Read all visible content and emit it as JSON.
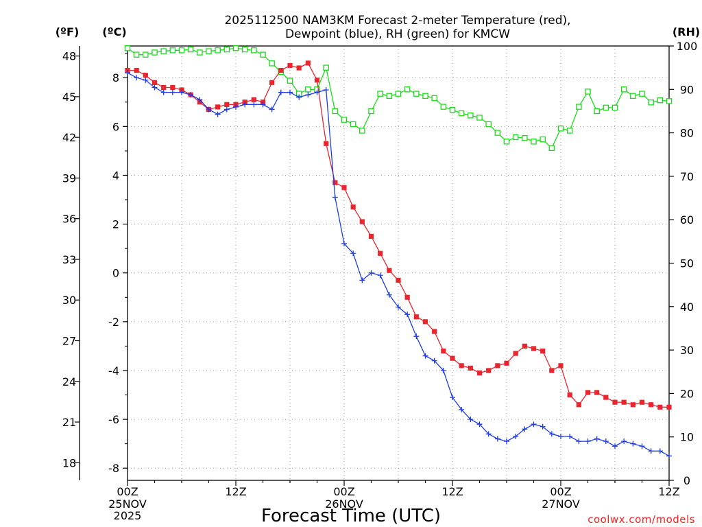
{
  "chart_data": {
    "type": "line",
    "title_line1": "2025112500 NAM3KM Forecast 2-meter Temperature (red),",
    "title_line2": "Dewpoint (blue), RH (green) for KMCW",
    "xlabel": "Forecast Time (UTC)",
    "credit": "coolwx.com/models",
    "left_unit_f": "(ºF)",
    "left_unit_c": "(ºC)",
    "right_unit": "(RH)",
    "x_hour_range": [
      0,
      60
    ],
    "y_celsius_range": [
      -8.5,
      9.3
    ],
    "y_rh_range": [
      0,
      100
    ],
    "x_ticks": [
      {
        "hour": 0,
        "label": "00Z",
        "sub1": "25NOV",
        "sub2": "2025"
      },
      {
        "hour": 12,
        "label": "12Z",
        "sub1": "",
        "sub2": ""
      },
      {
        "hour": 24,
        "label": "00Z",
        "sub1": "26NOV",
        "sub2": ""
      },
      {
        "hour": 36,
        "label": "12Z",
        "sub1": "",
        "sub2": ""
      },
      {
        "hour": 48,
        "label": "00Z",
        "sub1": "27NOV",
        "sub2": ""
      },
      {
        "hour": 60,
        "label": "12Z",
        "sub1": "",
        "sub2": ""
      }
    ],
    "y_ticks_c": [
      8,
      6,
      4,
      2,
      0,
      -2,
      -4,
      -6,
      -8
    ],
    "y_ticks_f": [
      48,
      45,
      42,
      39,
      36,
      33,
      30,
      27,
      24,
      21,
      18
    ],
    "y_ticks_rh": [
      100,
      90,
      80,
      70,
      60,
      50,
      40,
      30,
      20,
      10,
      0
    ],
    "colors": {
      "temperature": "#e8262e",
      "dewpoint": "#1e3be8",
      "rh": "#19dc19"
    },
    "series": [
      {
        "name": "Temperature (°C)",
        "key": "temp",
        "hours": [
          0,
          1,
          2,
          3,
          4,
          5,
          6,
          7,
          8,
          9,
          10,
          11,
          12,
          13,
          14,
          15,
          16,
          17,
          18,
          19,
          20,
          21,
          22,
          23,
          24,
          25,
          26,
          27,
          28,
          29,
          30,
          31,
          32,
          33,
          34,
          35,
          36,
          37,
          38,
          39,
          40,
          41,
          42,
          43,
          44,
          45,
          46,
          47,
          48,
          49,
          50,
          51,
          52,
          53,
          54,
          55,
          56,
          57,
          58,
          59,
          60
        ],
        "values": [
          8.3,
          8.3,
          8.1,
          7.8,
          7.6,
          7.6,
          7.5,
          7.3,
          7.0,
          6.7,
          6.8,
          6.9,
          6.9,
          7.0,
          7.1,
          7.0,
          7.8,
          8.3,
          8.5,
          8.4,
          8.6,
          7.9,
          5.3,
          3.7,
          3.5,
          2.7,
          2.1,
          1.5,
          0.8,
          0.1,
          -0.3,
          -1.0,
          -1.8,
          -2.0,
          -2.4,
          -3.2,
          -3.5,
          -3.8,
          -3.9,
          -4.1,
          -4.0,
          -3.8,
          -3.7,
          -3.3,
          -3.0,
          -3.1,
          -3.2,
          -4.0,
          -3.8,
          -5.0,
          -5.4,
          -4.9,
          -4.9,
          -5.1,
          -5.3,
          -5.3,
          -5.4,
          -5.3,
          -5.4,
          -5.5,
          -5.5
        ]
      },
      {
        "name": "Dewpoint (°C)",
        "key": "dew",
        "hours": [
          0,
          1,
          2,
          3,
          4,
          5,
          6,
          7,
          8,
          9,
          10,
          11,
          12,
          13,
          14,
          15,
          16,
          17,
          18,
          19,
          20,
          21,
          22,
          23,
          24,
          25,
          26,
          27,
          28,
          29,
          30,
          31,
          32,
          33,
          34,
          35,
          36,
          37,
          38,
          39,
          40,
          41,
          42,
          43,
          44,
          45,
          46,
          47,
          48,
          49,
          50,
          51,
          52,
          53,
          54,
          55,
          56,
          57,
          58,
          59,
          60
        ],
        "values": [
          8.2,
          8.0,
          7.9,
          7.6,
          7.4,
          7.4,
          7.4,
          7.3,
          7.1,
          6.7,
          6.5,
          6.7,
          6.8,
          6.9,
          6.9,
          6.9,
          6.7,
          7.4,
          7.4,
          7.2,
          7.3,
          7.4,
          7.5,
          3.1,
          1.2,
          0.8,
          -0.3,
          0.0,
          -0.1,
          -0.9,
          -1.4,
          -1.7,
          -2.6,
          -3.4,
          -3.6,
          -4.0,
          -5.1,
          -5.6,
          -6.0,
          -6.2,
          -6.6,
          -6.8,
          -6.9,
          -6.7,
          -6.4,
          -6.2,
          -6.3,
          -6.6,
          -6.7,
          -6.7,
          -6.9,
          -6.9,
          -6.8,
          -6.9,
          -7.1,
          -6.9,
          -7.0,
          -7.1,
          -7.3,
          -7.3,
          -7.5
        ]
      },
      {
        "name": "RH (%)",
        "key": "rh",
        "hours": [
          0,
          1,
          2,
          3,
          4,
          5,
          6,
          7,
          8,
          9,
          10,
          11,
          12,
          13,
          14,
          15,
          16,
          17,
          18,
          19,
          20,
          21,
          22,
          23,
          24,
          25,
          26,
          27,
          28,
          29,
          30,
          31,
          32,
          33,
          34,
          35,
          36,
          37,
          38,
          39,
          40,
          41,
          42,
          43,
          44,
          45,
          46,
          47,
          48,
          49,
          50,
          51,
          52,
          53,
          54,
          55,
          56,
          57,
          58,
          59,
          60
        ],
        "values": [
          99.5,
          98,
          98,
          98.5,
          98.8,
          99,
          99,
          99.2,
          98.5,
          98.8,
          99,
          99.2,
          99.5,
          99.2,
          99,
          98,
          96,
          94,
          92,
          89,
          90,
          90,
          95,
          85,
          83,
          82,
          80.5,
          85,
          89,
          88.5,
          89,
          90,
          89,
          88.5,
          88,
          86,
          85.3,
          84.5,
          84,
          83.5,
          82,
          80,
          78,
          79,
          78.8,
          78,
          78.5,
          76.5,
          81,
          80.5,
          86,
          89.5,
          85,
          85.8,
          85.8,
          90,
          88.5,
          89,
          87,
          87.5,
          87.3
        ]
      }
    ]
  }
}
